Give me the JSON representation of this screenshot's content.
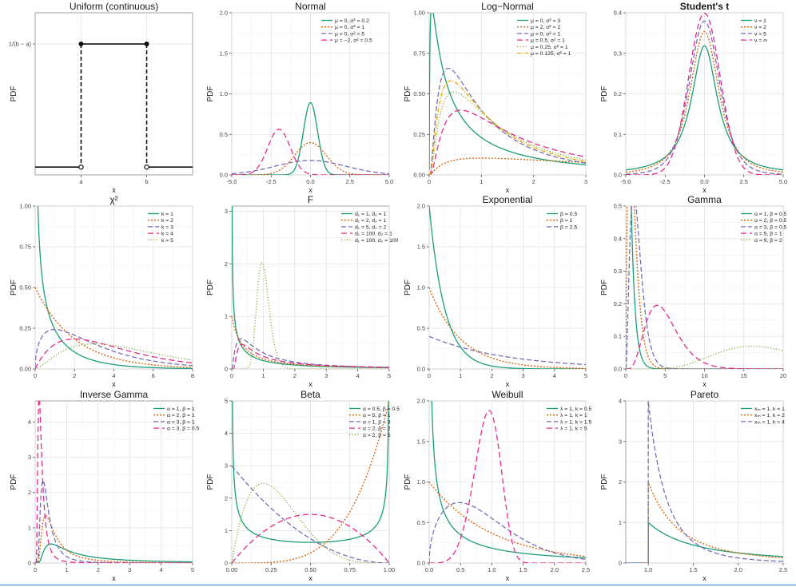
{
  "colors": {
    "teal": "#1b9e77",
    "orange": "#d95f02",
    "purple": "#7570b3",
    "pink": "#e7298a",
    "green": "#66a61e",
    "gold": "#e6ab02"
  },
  "chart_data": [
    {
      "type": "line",
      "title": "Uniform (continuous)",
      "xlabel": "x",
      "ylabel": "PDF",
      "grid": true,
      "xlim": [
        -0.7,
        1.7
      ],
      "ylim": [
        -0.05,
        1.25
      ],
      "x_ticks": [
        {
          "v": 0,
          "label": "a"
        },
        {
          "v": 1,
          "label": "b"
        }
      ],
      "y_ticks": [
        {
          "v": 1,
          "label": "1/(b − a)"
        }
      ],
      "series": [
        {
          "kind": "uniform",
          "a": 0,
          "b": 1,
          "height": 1
        }
      ]
    },
    {
      "type": "line",
      "title": "Normal",
      "xlabel": "x",
      "ylabel": "PDF",
      "grid": true,
      "xlim": [
        -5,
        5
      ],
      "ylim": [
        0,
        2
      ],
      "x_ticks": [
        "-5.0",
        "-2.5",
        "0.0",
        "2.5",
        "5.0"
      ],
      "y_ticks": [
        "0.0",
        "0.5",
        "1.0",
        "1.5",
        "2.0"
      ],
      "series": [
        {
          "name": "μ = 0, σ² = 0.2",
          "kind": "normal",
          "mu": 0,
          "var": 0.2
        },
        {
          "name": "μ = 0, σ² = 1",
          "kind": "normal",
          "mu": 0,
          "var": 1
        },
        {
          "name": "μ = 0, σ² = 5",
          "kind": "normal",
          "mu": 0,
          "var": 5
        },
        {
          "name": "μ = −2, σ² = 0.5",
          "kind": "normal",
          "mu": -2,
          "var": 0.5
        }
      ]
    },
    {
      "type": "line",
      "title": "Log−Normal",
      "xlabel": "x",
      "ylabel": "PDF",
      "grid": true,
      "xlim": [
        0,
        3
      ],
      "ylim": [
        0,
        1
      ],
      "x_ticks": [
        "0",
        "1",
        "2",
        "3"
      ],
      "y_ticks": [
        "0.00",
        "0.25",
        "0.50",
        "0.75",
        "1.00"
      ],
      "series": [
        {
          "name": "μ = 0, σ² = 3",
          "kind": "lognormal",
          "mu": 0,
          "var": 3
        },
        {
          "name": "μ = 2, σ² = 2",
          "kind": "lognormal",
          "mu": 2,
          "var": 2
        },
        {
          "name": "μ = 0, σ² = 1",
          "kind": "lognormal",
          "mu": 0,
          "var": 1
        },
        {
          "name": "μ = 0.5, σ² = 1",
          "kind": "lognormal",
          "mu": 0.5,
          "var": 1
        },
        {
          "name": "μ = 0.25, σ² = 1",
          "kind": "lognormal",
          "mu": 0.25,
          "var": 1
        },
        {
          "name": "μ = 0.125, σ² = 1",
          "kind": "lognormal",
          "mu": 0.125,
          "var": 1
        }
      ]
    },
    {
      "type": "line",
      "title": "Student's t",
      "xlabel": "x",
      "ylabel": "PDF",
      "grid": true,
      "xlim": [
        -5,
        5
      ],
      "ylim": [
        0,
        0.4
      ],
      "x_ticks": [
        "-5.0",
        "-2.5",
        "0.0",
        "2.5",
        "5.0"
      ],
      "y_ticks": [
        "0.0",
        "0.1",
        "0.2",
        "0.3",
        "0.4"
      ],
      "series": [
        {
          "name": "ν = 1",
          "kind": "t",
          "nu": 1
        },
        {
          "name": "ν = 2",
          "kind": "t",
          "nu": 2
        },
        {
          "name": "ν = 5",
          "kind": "t",
          "nu": 5
        },
        {
          "name": "ν = ∞",
          "kind": "t",
          "nu": null
        }
      ]
    },
    {
      "type": "line",
      "title": "χ²",
      "xlabel": "x",
      "ylabel": "PDF",
      "grid": true,
      "xlim": [
        0,
        8
      ],
      "ylim": [
        0,
        1
      ],
      "x_ticks": [
        "0",
        "2",
        "4",
        "6",
        "8"
      ],
      "y_ticks": [
        "0.00",
        "0.25",
        "0.50",
        "0.75",
        "1.00"
      ],
      "series": [
        {
          "name": "k = 1",
          "kind": "chisq",
          "k": 1
        },
        {
          "name": "k = 2",
          "kind": "chisq",
          "k": 2
        },
        {
          "name": "k = 3",
          "kind": "chisq",
          "k": 3
        },
        {
          "name": "k = 4",
          "kind": "chisq",
          "k": 4
        },
        {
          "name": "k = 5",
          "kind": "chisq",
          "k": 5
        }
      ]
    },
    {
      "type": "line",
      "title": "F",
      "xlabel": "x",
      "ylabel": "PDF",
      "grid": true,
      "xlim": [
        0,
        5
      ],
      "ylim": [
        0,
        3.1
      ],
      "x_ticks": [
        "0",
        "1",
        "2",
        "3",
        "4",
        "5"
      ],
      "y_ticks": [
        "0",
        "1",
        "2",
        "3"
      ],
      "series": [
        {
          "name": "d₁ = 1, d₂ = 1",
          "kind": "f",
          "d1": 1,
          "d2": 1
        },
        {
          "name": "d₁ = 2, d₂ = 1",
          "kind": "f",
          "d1": 2,
          "d2": 1
        },
        {
          "name": "d₁ = 5, d₂ = 2",
          "kind": "f",
          "d1": 5,
          "d2": 2
        },
        {
          "name": "d₁ = 100, d₂ = 1",
          "kind": "f",
          "d1": 100,
          "d2": 1
        },
        {
          "name": "d₁ = 100, d₂ = 100",
          "kind": "f",
          "d1": 100,
          "d2": 100
        }
      ]
    },
    {
      "type": "line",
      "title": "Exponential",
      "xlabel": "x",
      "ylabel": "PDF",
      "grid": true,
      "xlim": [
        0,
        5
      ],
      "ylim": [
        0,
        2
      ],
      "x_ticks": [
        "0",
        "1",
        "2",
        "3",
        "4",
        "5"
      ],
      "y_ticks": [
        "0.0",
        "0.5",
        "1.0",
        "1.5",
        "2.0"
      ],
      "series": [
        {
          "name": "β = 0.5",
          "kind": "exp",
          "beta": 0.5
        },
        {
          "name": "β = 1",
          "kind": "exp",
          "beta": 1
        },
        {
          "name": "β = 2.5",
          "kind": "exp",
          "beta": 2.5
        }
      ]
    },
    {
      "type": "line",
      "title": "Gamma",
      "xlabel": "x",
      "ylabel": "PDF",
      "grid": true,
      "xlim": [
        0,
        20
      ],
      "ylim": [
        0,
        0.5
      ],
      "x_ticks": [
        "0",
        "5",
        "10",
        "15",
        "20"
      ],
      "y_ticks": [
        "0.0",
        "0.1",
        "0.2",
        "0.3",
        "0.4",
        "0.5"
      ],
      "series": [
        {
          "name": "α = 1, β = 0.5",
          "kind": "gamma",
          "alpha": 1,
          "beta": 0.5
        },
        {
          "name": "α = 2, β = 0.5",
          "kind": "gamma",
          "alpha": 2,
          "beta": 0.5
        },
        {
          "name": "α = 3, β = 0.5",
          "kind": "gamma",
          "alpha": 3,
          "beta": 0.5
        },
        {
          "name": "α = 5, β = 1",
          "kind": "gamma",
          "alpha": 5,
          "beta": 1
        },
        {
          "name": "α = 9, β = 2",
          "kind": "gamma",
          "alpha": 9,
          "beta": 2
        }
      ]
    },
    {
      "type": "line",
      "title": "Inverse Gamma",
      "xlabel": "x",
      "ylabel": "PDF",
      "grid": true,
      "xlim": [
        0,
        5
      ],
      "ylim": [
        0,
        4.6
      ],
      "x_ticks": [
        "0",
        "1",
        "2",
        "3",
        "4",
        "5"
      ],
      "y_ticks": [
        "0",
        "1",
        "2",
        "3",
        "4"
      ],
      "series": [
        {
          "name": "α = 1, β = 1",
          "kind": "invgamma",
          "alpha": 1,
          "beta": 1
        },
        {
          "name": "α = 2, β = 1",
          "kind": "invgamma",
          "alpha": 2,
          "beta": 1
        },
        {
          "name": "α = 3, β = 1",
          "kind": "invgamma",
          "alpha": 3,
          "beta": 1
        },
        {
          "name": "α = 3, β = 0.5",
          "kind": "invgamma",
          "alpha": 3,
          "beta": 0.5
        }
      ]
    },
    {
      "type": "line",
      "title": "Beta",
      "xlabel": "x",
      "ylabel": "PDF",
      "grid": true,
      "xlim": [
        0,
        1
      ],
      "ylim": [
        0,
        5
      ],
      "x_ticks": [
        "0.00",
        "0.25",
        "0.50",
        "0.75",
        "1.00"
      ],
      "y_ticks": [
        "0",
        "1",
        "2",
        "3",
        "4",
        "5"
      ],
      "series": [
        {
          "name": "α = 0.5, β = 0.5",
          "kind": "beta",
          "alpha": 0.5,
          "beta": 0.5
        },
        {
          "name": "α = 5, β = 1",
          "kind": "beta",
          "alpha": 5,
          "beta": 1
        },
        {
          "name": "α = 1, β = 3",
          "kind": "beta",
          "alpha": 1,
          "beta": 3
        },
        {
          "name": "α = 2, β = 2",
          "kind": "beta",
          "alpha": 2,
          "beta": 2
        },
        {
          "name": "α = 2, β = 5",
          "kind": "beta",
          "alpha": 2,
          "beta": 5
        }
      ]
    },
    {
      "type": "line",
      "title": "Weibull",
      "xlabel": "x",
      "ylabel": "PDF",
      "grid": true,
      "xlim": [
        0,
        2.5
      ],
      "ylim": [
        0,
        2
      ],
      "x_ticks": [
        "0.0",
        "0.5",
        "1.0",
        "1.5",
        "2.0",
        "2.5"
      ],
      "y_ticks": [
        "0.0",
        "0.5",
        "1.0",
        "1.5",
        "2.0"
      ],
      "series": [
        {
          "name": "λ = 1, k = 0.5",
          "kind": "weibull",
          "lambda": 1,
          "k": 0.5
        },
        {
          "name": "λ = 1, k = 1",
          "kind": "weibull",
          "lambda": 1,
          "k": 1
        },
        {
          "name": "λ = 1, k = 1.5",
          "kind": "weibull",
          "lambda": 1,
          "k": 1.5
        },
        {
          "name": "λ = 1, k = 5",
          "kind": "weibull",
          "lambda": 1,
          "k": 5
        }
      ]
    },
    {
      "type": "line",
      "title": "Pareto",
      "xlabel": "x",
      "ylabel": "PDF",
      "grid": true,
      "xlim": [
        0.75,
        2.5
      ],
      "ylim": [
        0,
        4
      ],
      "x_ticks": [
        "1.0",
        "1.5",
        "2.0",
        "2.5"
      ],
      "y_ticks": [
        "0",
        "1",
        "2",
        "3",
        "4"
      ],
      "series": [
        {
          "name": "xₘ = 1, k = 1",
          "kind": "pareto",
          "xm": 1,
          "k": 1
        },
        {
          "name": "xₘ = 1, k = 2",
          "kind": "pareto",
          "xm": 1,
          "k": 2
        },
        {
          "name": "xₘ = 1, k = 4",
          "kind": "pareto",
          "xm": 1,
          "k": 4
        }
      ]
    }
  ]
}
